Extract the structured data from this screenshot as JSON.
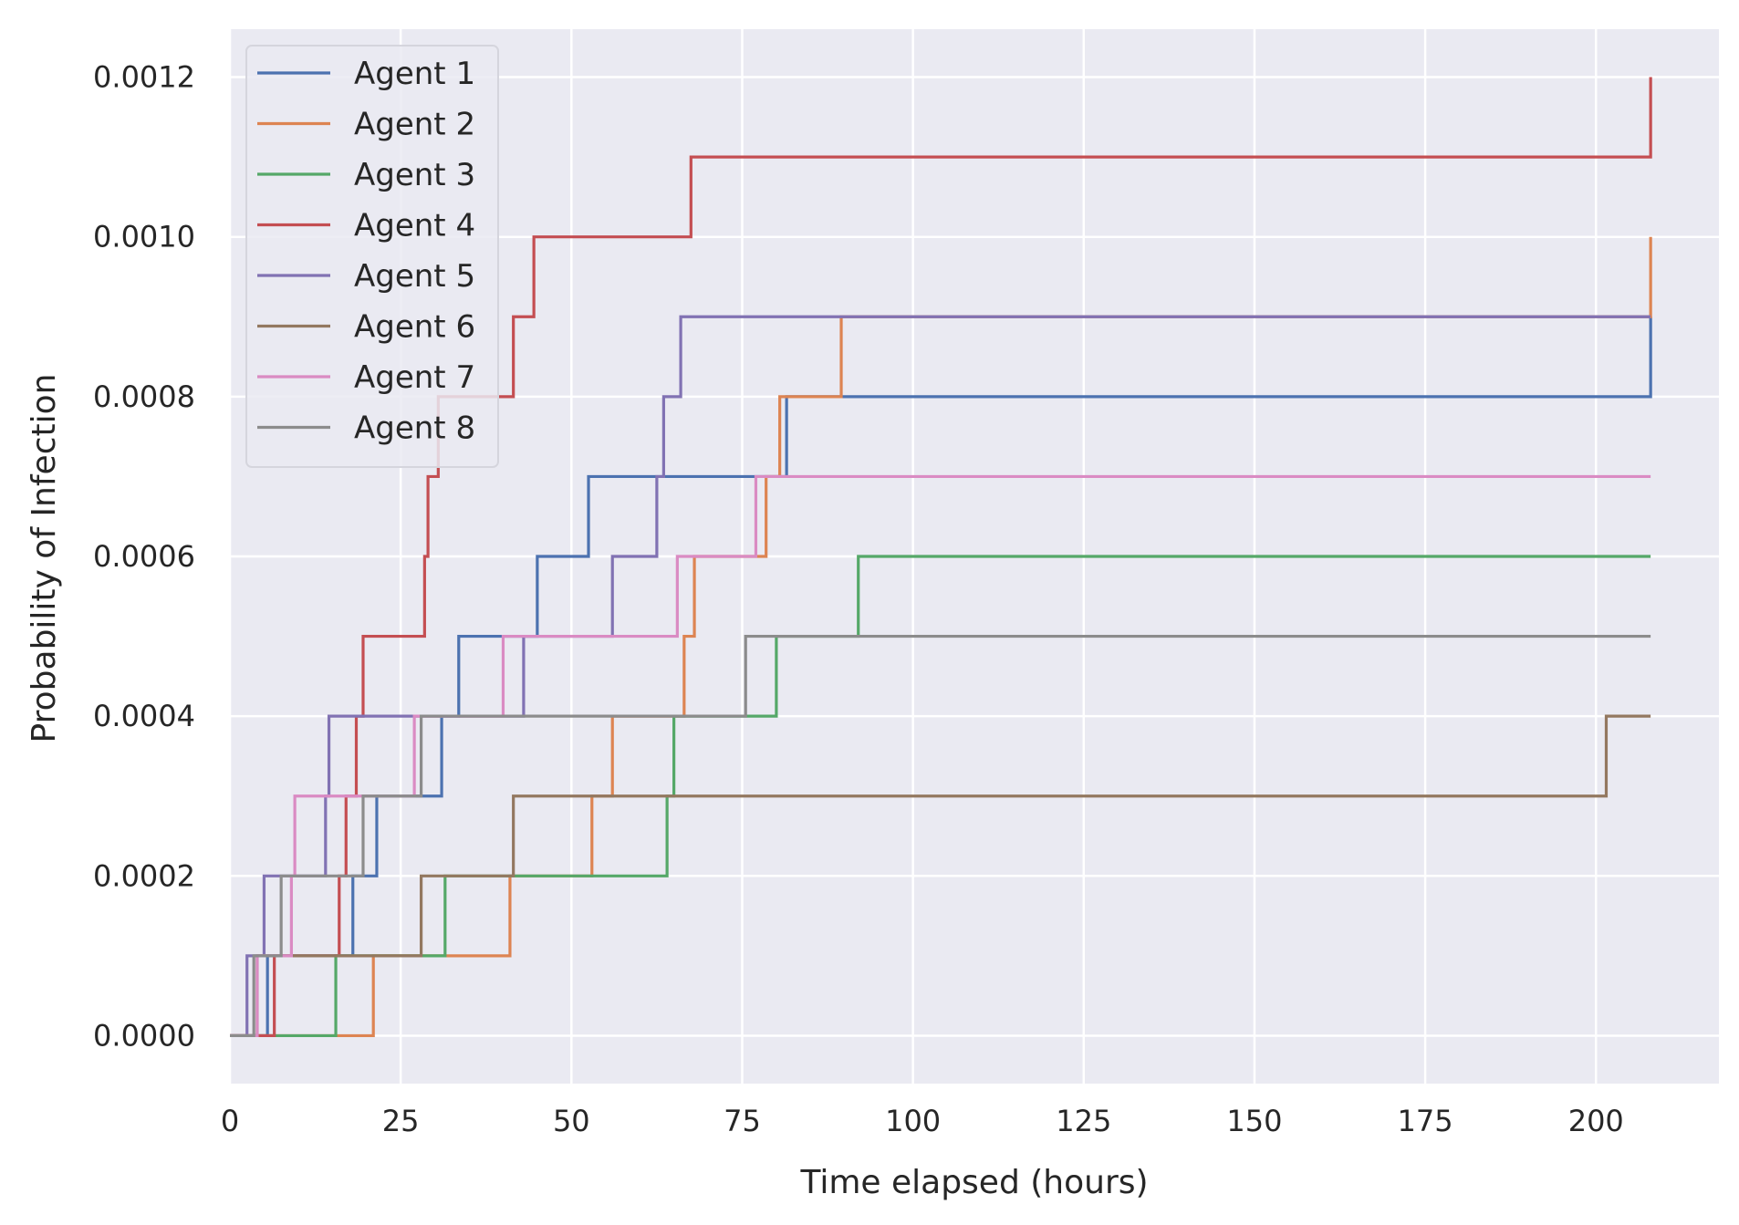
{
  "chart_data": {
    "type": "line",
    "step": "post",
    "title": "",
    "xlabel": "Time elapsed (hours)",
    "ylabel": "Probability of Infection",
    "xlim": [
      0,
      218
    ],
    "ylim": [
      -6e-05,
      0.00126
    ],
    "xticks": [
      0,
      25,
      50,
      75,
      100,
      125,
      150,
      175,
      200
    ],
    "xtick_labels": [
      "0",
      "25",
      "50",
      "75",
      "100",
      "125",
      "150",
      "175",
      "200"
    ],
    "yticks": [
      0,
      0.0002,
      0.0004,
      0.0006,
      0.0008,
      0.001,
      0.0012
    ],
    "ytick_labels": [
      "0.0000",
      "0.0002",
      "0.0004",
      "0.0006",
      "0.0008",
      "0.0010",
      "0.0012"
    ],
    "grid": true,
    "background": "#eaeaf2",
    "legend_position": "top-left",
    "series": [
      {
        "name": "Agent 1",
        "color": "#4c72b0",
        "x": [
          0,
          5.5,
          18,
          21.5,
          31,
          33.5,
          45,
          52.5,
          81.5,
          208
        ],
        "y": [
          0,
          0.0001,
          0.0002,
          0.0003,
          0.0004,
          0.0005,
          0.0006,
          0.0007,
          0.0008,
          0.0009
        ]
      },
      {
        "name": "Agent 2",
        "color": "#dd8452",
        "x": [
          0,
          21,
          41,
          53,
          56,
          66.5,
          68,
          78.5,
          80.5,
          89.5,
          208
        ],
        "y": [
          0,
          0.0001,
          0.0002,
          0.0003,
          0.0004,
          0.0005,
          0.0006,
          0.0007,
          0.0008,
          0.0009,
          0.001
        ]
      },
      {
        "name": "Agent 3",
        "color": "#55a868",
        "x": [
          0,
          15.5,
          31.5,
          64,
          65,
          80,
          92,
          208
        ],
        "y": [
          0,
          0.0001,
          0.0002,
          0.0003,
          0.0004,
          0.0005,
          0.0006,
          0.0006
        ]
      },
      {
        "name": "Agent 4",
        "color": "#c44e52",
        "x": [
          0,
          6.5,
          16,
          17,
          18.5,
          19.5,
          28.5,
          29,
          30.5,
          41.5,
          44.5,
          67.5,
          208
        ],
        "y": [
          0,
          0.0001,
          0.0002,
          0.0003,
          0.0004,
          0.0005,
          0.0006,
          0.0007,
          0.0008,
          0.0009,
          0.001,
          0.0011,
          0.0012
        ]
      },
      {
        "name": "Agent 5",
        "color": "#8172b3",
        "x": [
          0,
          2.5,
          5,
          14,
          14.5,
          27,
          43,
          56,
          62.5,
          63.5,
          66,
          208
        ],
        "y": [
          0,
          0.0001,
          0.0002,
          0.0003,
          0.0004,
          0.0004,
          0.0005,
          0.0006,
          0.0007,
          0.0008,
          0.0009,
          0.0009
        ]
      },
      {
        "name": "Agent 6",
        "color": "#937860",
        "x": [
          0,
          4,
          28,
          41.5,
          43.5,
          201.5,
          208
        ],
        "y": [
          0,
          0.0001,
          0.0002,
          0.0003,
          0.0003,
          0.0004,
          0.0004
        ]
      },
      {
        "name": "Agent 7",
        "color": "#da8bc3",
        "x": [
          0,
          4,
          9,
          9.5,
          27,
          40,
          65.5,
          77,
          208
        ],
        "y": [
          0,
          0.0001,
          0.0002,
          0.0003,
          0.0004,
          0.0005,
          0.0006,
          0.0007,
          0.0007
        ]
      },
      {
        "name": "Agent 8",
        "color": "#8c8c8c",
        "x": [
          0,
          3.5,
          7.5,
          19.5,
          28,
          75.5,
          208
        ],
        "y": [
          0,
          0.0001,
          0.0002,
          0.0003,
          0.0004,
          0.0005,
          0.0005
        ]
      }
    ]
  }
}
